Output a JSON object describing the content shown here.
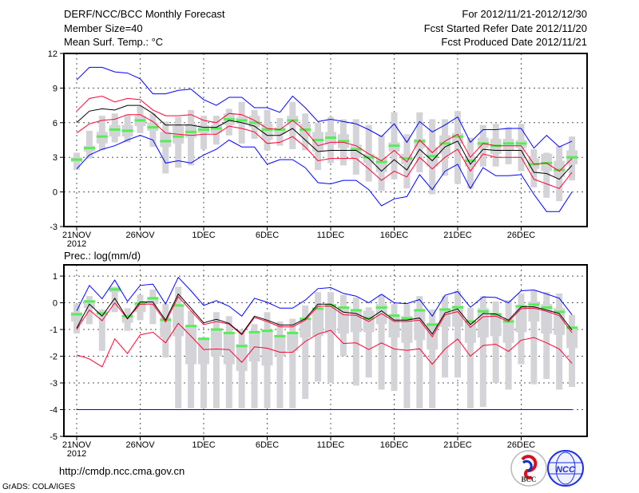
{
  "header": {
    "title": "DERF/NCC/BCC Monthly Forecast",
    "member_size": "Member Size=40",
    "variable": "Mean Surf. Temp.: °C",
    "period": "For 2012/11/21-2012/12/30",
    "started": "Fcst Started Refer Date 2012/11/20",
    "produced": "Fcst Produced Date 2012/11/21"
  },
  "footer": {
    "url": "http://cmdp.ncc.cma.gov.cn",
    "credit": "GrADS: COLA/IGES",
    "logo_bcc": "BCC",
    "logo_ncc": "NCC"
  },
  "colors": {
    "outer": "#0000ff",
    "spread": "#ff0033",
    "mean": "#000000",
    "median": "#55ee55",
    "box": "#d4d4d8",
    "grid": "#555555"
  },
  "chart_data": [
    {
      "type": "line",
      "title": "Mean Surf. Temp.: °C",
      "x_start_label": "21NOV",
      "year_label": "2012",
      "xticks": [
        {
          "day": 0,
          "label": "21NOV"
        },
        {
          "day": 5,
          "label": "26NOV"
        },
        {
          "day": 10,
          "label": "1DEC"
        },
        {
          "day": 15,
          "label": "6DEC"
        },
        {
          "day": 20,
          "label": "11DEC"
        },
        {
          "day": 25,
          "label": "16DEC"
        },
        {
          "day": 30,
          "label": "21DEC"
        },
        {
          "day": 35,
          "label": "26DEC"
        }
      ],
      "ylim": [
        -3,
        12
      ],
      "yticks": [
        -3,
        0,
        3,
        6,
        9,
        12
      ],
      "grid": true,
      "series": {
        "blue_upper": [
          9.7,
          10.8,
          10.8,
          10.4,
          10.3,
          9.8,
          8.5,
          8.5,
          8.8,
          8.9,
          8.0,
          7.5,
          8.2,
          8.2,
          7.3,
          7.3,
          6.9,
          8.3,
          7.3,
          6.1,
          6.3,
          6.1,
          5.9,
          5.4,
          4.8,
          5.9,
          4.3,
          6.1,
          5.2,
          5.8,
          6.5,
          4.3,
          5.4,
          5.4,
          5.5,
          5.5,
          3.8,
          4.9,
          3.9,
          4.4
        ],
        "red_upper": [
          7.0,
          8.1,
          8.3,
          7.8,
          8.1,
          8.0,
          7.1,
          6.6,
          6.6,
          6.7,
          6.2,
          6.0,
          6.8,
          6.7,
          6.2,
          5.5,
          5.4,
          6.2,
          5.3,
          4.0,
          4.3,
          4.3,
          4.0,
          3.3,
          2.7,
          3.6,
          2.6,
          4.5,
          3.4,
          4.4,
          5.0,
          3.0,
          4.2,
          4.0,
          4.0,
          4.0,
          2.4,
          2.5,
          1.8,
          2.9
        ],
        "mean": [
          6.0,
          7.0,
          7.2,
          7.1,
          7.5,
          7.5,
          6.8,
          5.8,
          5.8,
          5.8,
          5.6,
          5.6,
          6.2,
          6.0,
          5.7,
          4.9,
          4.9,
          5.5,
          4.5,
          3.5,
          3.6,
          3.6,
          3.6,
          2.9,
          1.8,
          2.8,
          1.9,
          3.7,
          2.7,
          3.9,
          4.4,
          2.4,
          3.7,
          3.6,
          3.6,
          3.6,
          1.7,
          1.6,
          1.1,
          2.3
        ],
        "red_lower": [
          5.1,
          5.9,
          6.2,
          6.3,
          6.7,
          6.7,
          6.1,
          5.1,
          5.0,
          4.9,
          5.0,
          5.0,
          5.7,
          5.5,
          5.2,
          4.2,
          4.3,
          4.8,
          3.9,
          2.7,
          2.9,
          2.9,
          2.9,
          2.0,
          1.0,
          1.8,
          1.3,
          3.0,
          2.0,
          3.0,
          3.7,
          1.8,
          3.3,
          3.0,
          3.0,
          3.0,
          1.1,
          0.7,
          0.3,
          1.7
        ],
        "blue_lower": [
          2.0,
          3.2,
          3.7,
          4.0,
          4.5,
          4.9,
          4.5,
          2.5,
          2.7,
          2.5,
          3.2,
          3.7,
          4.5,
          3.9,
          3.9,
          2.4,
          2.8,
          2.8,
          2.1,
          0.8,
          0.7,
          1.0,
          1.0,
          0.2,
          -1.2,
          -0.6,
          -0.4,
          1.5,
          0.2,
          1.8,
          2.4,
          0.3,
          2.1,
          1.4,
          1.4,
          1.5,
          -0.2,
          -1.7,
          -1.7,
          0.0
        ],
        "median": [
          2.8,
          3.8,
          4.8,
          5.4,
          5.3,
          6.2,
          5.6,
          4.4,
          4.8,
          5.2,
          5.4,
          5.5,
          6.3,
          6.2,
          6.0,
          5.4,
          5.4,
          6.2,
          5.4,
          4.5,
          4.7,
          4.4,
          3.7,
          3.0,
          2.6,
          4.0,
          2.9,
          4.4,
          3.1,
          4.2,
          4.8,
          2.7,
          4.2,
          4.0,
          4.2,
          4.2,
          2.4,
          2.5,
          1.9,
          3.0
        ],
        "min": [
          1.9,
          2.9,
          3.6,
          4.3,
          4.3,
          5.1,
          3.9,
          1.6,
          2.1,
          2.3,
          3.7,
          4.1,
          4.9,
          4.2,
          4.6,
          3.6,
          4.0,
          3.7,
          3.6,
          1.9,
          2.5,
          2.3,
          1.5,
          0.9,
          0.1,
          1.1,
          0.3,
          1.7,
          -0.2,
          1.4,
          0.7,
          0.3,
          2.2,
          2.2,
          2.4,
          1.8,
          0.4,
          -0.5,
          -0.8,
          1.0
        ],
        "q1": [
          2.6,
          3.5,
          4.2,
          4.8,
          4.8,
          5.7,
          5.3,
          3.9,
          4.2,
          4.7,
          5.1,
          5.1,
          5.8,
          5.9,
          5.6,
          4.5,
          5.0,
          5.8,
          4.9,
          3.5,
          4.1,
          3.8,
          3.0,
          2.5,
          1.7,
          3.5,
          2.4,
          3.8,
          2.2,
          3.3,
          4.2,
          2.2,
          3.8,
          3.3,
          3.6,
          3.8,
          2.0,
          1.8,
          1.3,
          2.4
        ],
        "q3": [
          3.0,
          4.0,
          5.2,
          5.8,
          5.8,
          6.6,
          6.0,
          5.2,
          5.7,
          5.9,
          5.8,
          5.8,
          6.8,
          6.5,
          6.6,
          5.9,
          5.6,
          6.6,
          5.9,
          5.2,
          5.2,
          5.0,
          4.1,
          3.3,
          3.0,
          4.3,
          3.3,
          4.6,
          3.9,
          4.9,
          5.1,
          3.1,
          4.7,
          4.6,
          4.6,
          4.5,
          2.9,
          3.3,
          2.7,
          3.6
        ],
        "max": [
          3.4,
          5.3,
          6.6,
          6.8,
          6.7,
          7.4,
          6.8,
          6.1,
          6.5,
          7.1,
          6.6,
          6.6,
          7.2,
          7.8,
          7.1,
          7.1,
          6.4,
          7.8,
          6.8,
          6.0,
          6.5,
          6.3,
          6.3,
          5.8,
          4.9,
          6.9,
          5.0,
          6.9,
          6.3,
          6.3,
          7.0,
          4.7,
          5.8,
          5.9,
          5.6,
          5.9,
          3.7,
          3.4,
          4.0,
          4.8
        ]
      }
    },
    {
      "type": "line",
      "title": "Prec.: log(mm/d)",
      "x_start_label": "21NOV",
      "year_label": "2012",
      "xticks": [
        {
          "day": 0,
          "label": "21NOV"
        },
        {
          "day": 5,
          "label": "26NOV"
        },
        {
          "day": 10,
          "label": "1DEC"
        },
        {
          "day": 15,
          "label": "6DEC"
        },
        {
          "day": 20,
          "label": "11DEC"
        },
        {
          "day": 25,
          "label": "16DEC"
        },
        {
          "day": 30,
          "label": "21DEC"
        },
        {
          "day": 35,
          "label": "26DEC"
        }
      ],
      "ylim": [
        -5,
        1.42
      ],
      "yticks": [
        -5,
        -4,
        -3,
        -2,
        -1,
        0,
        1
      ],
      "grid": true,
      "series": {
        "blue_upper": [
          -0.3,
          0.65,
          0.15,
          0.85,
          0.05,
          0.65,
          0.7,
          -0.05,
          0.95,
          0.45,
          -0.1,
          0.08,
          -0.13,
          -0.5,
          0.17,
          0.02,
          -0.2,
          -0.2,
          0.1,
          0.53,
          0.57,
          0.35,
          0.25,
          0,
          0.32,
          0,
          -0.03,
          0.12,
          -0.5,
          0.28,
          0.42,
          -0.17,
          0.22,
          0.2,
          0,
          0.45,
          0.48,
          0.33,
          0.17,
          -0.45
        ],
        "red_upper": [
          -1.0,
          -0.27,
          -0.67,
          0,
          -0.6,
          -0.05,
          -0.05,
          -0.72,
          0.23,
          -0.3,
          -0.82,
          -0.7,
          -0.8,
          -1.2,
          -0.55,
          -0.7,
          -0.9,
          -0.9,
          -0.65,
          -0.13,
          -0.13,
          -0.45,
          -0.47,
          -0.7,
          -0.4,
          -0.7,
          -0.7,
          -0.65,
          -1.27,
          -0.45,
          -0.33,
          -0.92,
          -0.52,
          -0.5,
          -0.7,
          -0.22,
          -0.2,
          -0.32,
          -0.48,
          -1.12
        ],
        "mean": [
          -0.95,
          -0.05,
          -0.5,
          0.17,
          -0.6,
          0.03,
          0.03,
          -0.65,
          0.33,
          -0.2,
          -0.75,
          -0.62,
          -0.77,
          -1.17,
          -0.5,
          -0.65,
          -0.83,
          -0.83,
          -0.6,
          -0.05,
          -0.05,
          -0.35,
          -0.4,
          -0.62,
          -0.3,
          -0.65,
          -0.65,
          -0.57,
          -1.17,
          -0.38,
          -0.23,
          -0.82,
          -0.4,
          -0.42,
          -0.65,
          -0.15,
          -0.15,
          -0.27,
          -0.4,
          -1.02
        ],
        "red_lower": [
          -1.95,
          -2.1,
          -2.4,
          -1.35,
          -1.9,
          -1.2,
          -1.1,
          -1.5,
          -0.77,
          -1.25,
          -1.75,
          -1.73,
          -1.75,
          -2.23,
          -1.65,
          -1.7,
          -1.85,
          -1.85,
          -1.45,
          -1.17,
          -1.03,
          -1.52,
          -1.5,
          -1.75,
          -1.5,
          -1.73,
          -1.78,
          -1.72,
          -2.3,
          -1.73,
          -1.35,
          -2.0,
          -1.6,
          -1.55,
          -1.82,
          -1.4,
          -1.3,
          -1.5,
          -1.73,
          -2.27
        ],
        "blue_lower": [
          -4,
          -4,
          -4,
          -4,
          -4,
          -4,
          -4,
          -4,
          -4,
          -4,
          -4,
          -4,
          -4,
          -4,
          -4,
          -4,
          -4,
          -4,
          -4,
          -4,
          -4,
          -4,
          -4,
          -4,
          -4,
          -4,
          -4,
          -4,
          -4,
          -4,
          -4,
          -4,
          -4,
          -4,
          -4,
          -4,
          -4,
          -4,
          -4,
          -4
        ],
        "median": [
          -0.43,
          0.05,
          -0.4,
          0.5,
          -0.5,
          -0.03,
          0.17,
          -0.64,
          -0.1,
          -0.87,
          -1.35,
          -1.0,
          -1.13,
          -1.62,
          -1.1,
          -1.05,
          -1.25,
          -1.13,
          -0.6,
          -0.22,
          -0.1,
          -0.18,
          -0.28,
          -0.58,
          -0.18,
          -0.48,
          -0.58,
          -0.28,
          -0.82,
          -0.25,
          -0.17,
          -0.7,
          -0.32,
          -0.43,
          -0.7,
          -0.13,
          -0.07,
          -0.18,
          -0.34,
          -0.93
        ],
        "min": [
          -1.15,
          -0.8,
          -1.8,
          -0.35,
          -1.05,
          -0.65,
          -0.8,
          -2.05,
          -3.95,
          -3.95,
          -3.95,
          -3.95,
          -3.95,
          -3.95,
          -3.95,
          -3.95,
          -3.95,
          -3.95,
          -3.6,
          -2.95,
          -3.0,
          -2.0,
          -3.1,
          -2.8,
          -3.25,
          -3.3,
          -3.95,
          -3.95,
          -3.95,
          -2.8,
          -2.8,
          -3.95,
          -3.9,
          -3.0,
          -3.25,
          -2.3,
          -3.05,
          -2.85,
          -3.25,
          -3.15
        ],
        "q1": [
          -0.7,
          -0.2,
          -0.45,
          0.4,
          -0.75,
          -0.35,
          -0.05,
          -1.3,
          -1.25,
          -2.3,
          -2.3,
          -2.0,
          -2.3,
          -2.55,
          -2.2,
          -2.35,
          -2.0,
          -1.8,
          -1.3,
          -1.25,
          -1.15,
          -1.15,
          -1.1,
          -1.1,
          -0.8,
          -1.3,
          -1.5,
          -1.4,
          -1.75,
          -0.9,
          -0.9,
          -1.5,
          -1.3,
          -1.25,
          -1.5,
          -1.1,
          -0.7,
          -1.15,
          -1.2,
          -1.7
        ],
        "q3": [
          -0.35,
          0.1,
          -0.3,
          0.6,
          -0.45,
          0,
          0.2,
          -0.55,
          -0.1,
          -0.85,
          -1.3,
          -0.95,
          -1.1,
          -1.55,
          -1.05,
          -1.0,
          -1.2,
          -1.1,
          -0.6,
          -0.2,
          -0.05,
          -0.15,
          -0.3,
          -0.3,
          -0.05,
          -0.45,
          -0.5,
          -0.3,
          -0.75,
          -0.25,
          -0.1,
          -0.7,
          -0.2,
          -0.4,
          -0.6,
          -0.1,
          0.05,
          -0.05,
          -0.2,
          -0.9
        ],
        "max": [
          -0.05,
          0.25,
          -0.25,
          0.6,
          -0.2,
          0.3,
          0.5,
          -0.05,
          0.6,
          -0.3,
          -1.3,
          -0.35,
          -0.5,
          -1.0,
          -0.8,
          -0.35,
          -0.7,
          -0.6,
          -0.1,
          0.4,
          0.4,
          0.3,
          0.2,
          -0.17,
          0.3,
          -0.05,
          -0.05,
          0.25,
          -0.25,
          0.25,
          0.45,
          -0.2,
          0.25,
          0.05,
          0.1,
          0.35,
          0.45,
          0.4,
          0.35,
          -0.45
        ]
      }
    }
  ]
}
